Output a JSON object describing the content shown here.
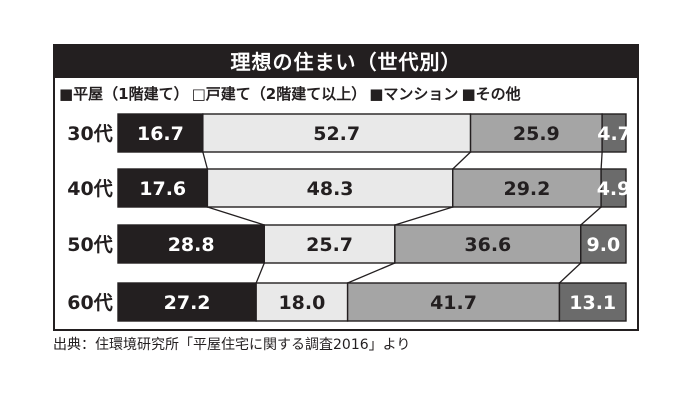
{
  "title": "理想の住まい（世代別）",
  "source": "出典：住環境研究所「平屋住宅に関する調査2016」より",
  "colors": {
    "frame": "#231f20",
    "hiraya": "#231f20",
    "kodate": "#e9e9e9",
    "mansion": "#a5a5a5",
    "other": "#6b6b6b",
    "connector": "#231f20"
  },
  "legend": [
    {
      "label": "■平屋（1階建て）",
      "color_key": "hiraya"
    },
    {
      "label": "□戸建て（2階建て以上）",
      "color_key": "kodate"
    },
    {
      "label": "■マンション",
      "color_key": "mansion"
    },
    {
      "label": "■その他",
      "color_key": "other"
    }
  ],
  "chart_data": {
    "type": "bar",
    "orientation": "horizontal",
    "stacked": true,
    "title": "理想の住まい（世代別）",
    "categories": [
      "30代",
      "40代",
      "50代",
      "60代"
    ],
    "series": [
      {
        "name": "平屋（1階建て）",
        "values": [
          16.7,
          17.6,
          28.8,
          27.2
        ]
      },
      {
        "name": "戸建て（2階建て以上）",
        "values": [
          52.7,
          48.3,
          25.7,
          18.0
        ]
      },
      {
        "name": "マンション",
        "values": [
          25.9,
          29.2,
          36.6,
          41.7
        ]
      },
      {
        "name": "その他",
        "values": [
          4.7,
          4.9,
          9.0,
          13.1
        ]
      }
    ],
    "value_labels": [
      [
        "16.7",
        "52.7",
        "25.9",
        "4.7"
      ],
      [
        "17.6",
        "48.3",
        "29.2",
        "4.9"
      ],
      [
        "28.8",
        "25.7",
        "36.6",
        "9.0"
      ],
      [
        "27.2",
        "18.0",
        "41.7",
        "13.1"
      ]
    ],
    "xlim": [
      0,
      100
    ],
    "connector_lines": true,
    "legend_position": "top",
    "grid": false
  }
}
